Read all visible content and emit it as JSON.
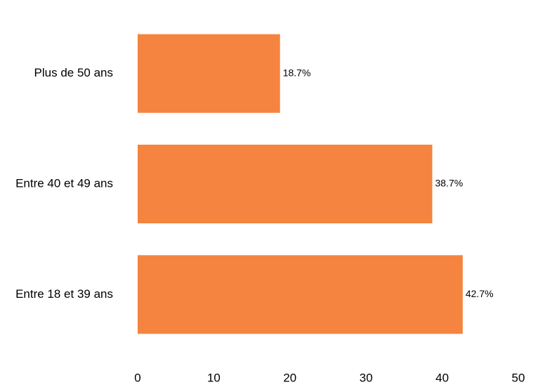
{
  "chart_data": {
    "type": "bar",
    "orientation": "horizontal",
    "categories": [
      "Plus de 50 ans",
      "Entre 40 et 49 ans",
      "Entre 18 et 39 ans"
    ],
    "values": [
      18.7,
      38.7,
      42.7
    ],
    "data_labels": [
      "18.7%",
      "38.7%",
      "42.7%"
    ],
    "xlim": [
      0,
      50
    ],
    "xticks": [
      0,
      10,
      20,
      30,
      40,
      50
    ],
    "xtick_labels": [
      "0",
      "10",
      "20",
      "30",
      "40",
      "50"
    ],
    "title": "",
    "xlabel": "",
    "ylabel": "",
    "grid": false,
    "bar_color": "#F4843F"
  }
}
